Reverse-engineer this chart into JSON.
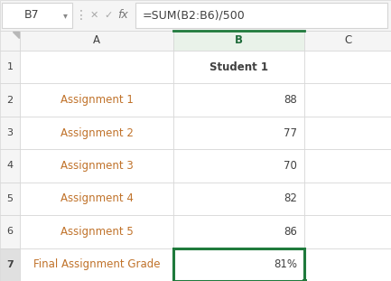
{
  "toolbar": {
    "cell_ref": "B7",
    "formula": "=SUM(B2:B6)/500"
  },
  "toolbar_bg": "#f5f5f5",
  "formula_bar_bg": "#ffffff",
  "col_header_bg": "#f5f5f5",
  "col_B_header_bg": "#e9f2e9",
  "col_B_header_color": "#1f6b3a",
  "col_B_border_color": "#1f7a3c",
  "grid_color": "#d4d4d4",
  "white": "#ffffff",
  "text_dark": "#404040",
  "text_assignment": "#c0722a",
  "text_row7_label": "#404040",
  "row7_header_bg": "#e0e0e0",
  "rows": [
    {
      "row": "1",
      "A": "",
      "B": "Student 1",
      "B_bold": true,
      "B_align": "center"
    },
    {
      "row": "2",
      "A": "Assignment 1",
      "B": "88",
      "B_bold": false,
      "B_align": "right"
    },
    {
      "row": "3",
      "A": "Assignment 2",
      "B": "77",
      "B_bold": false,
      "B_align": "right"
    },
    {
      "row": "4",
      "A": "Assignment 3",
      "B": "70",
      "B_bold": false,
      "B_align": "right"
    },
    {
      "row": "5",
      "A": "Assignment 4",
      "B": "82",
      "B_bold": false,
      "B_align": "right"
    },
    {
      "row": "6",
      "A": "Assignment 5",
      "B": "86",
      "B_bold": false,
      "B_align": "right"
    },
    {
      "row": "7",
      "A": "Final Assignment Grade",
      "B": "81%",
      "B_bold": false,
      "B_align": "right",
      "selected": true
    }
  ]
}
